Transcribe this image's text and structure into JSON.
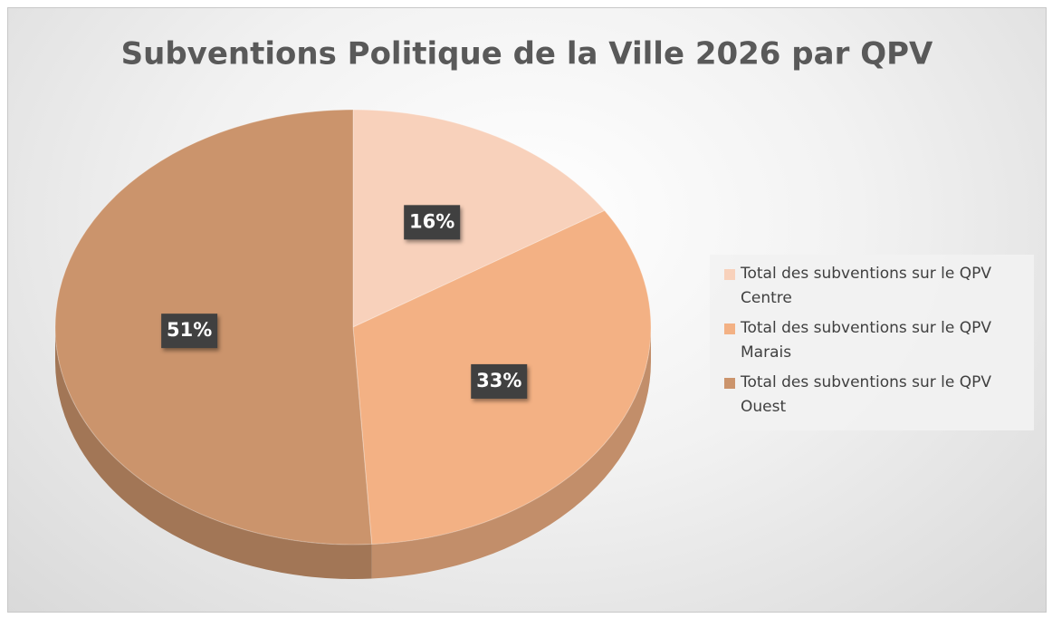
{
  "chart_data": {
    "type": "pie",
    "title": "Subventions Politique de la Ville 2026 par QPV",
    "categories": [
      "Total des subventions sur le QPV Centre",
      "Total des subventions sur le QPV Marais",
      "Total des subventions sur le QPV Ouest"
    ],
    "values": [
      16,
      33,
      51
    ],
    "value_labels": [
      "16%",
      "33%",
      "51%"
    ],
    "colors": [
      "#f8d1bb",
      "#f3b184",
      "#cb946c"
    ],
    "legend": "right"
  }
}
